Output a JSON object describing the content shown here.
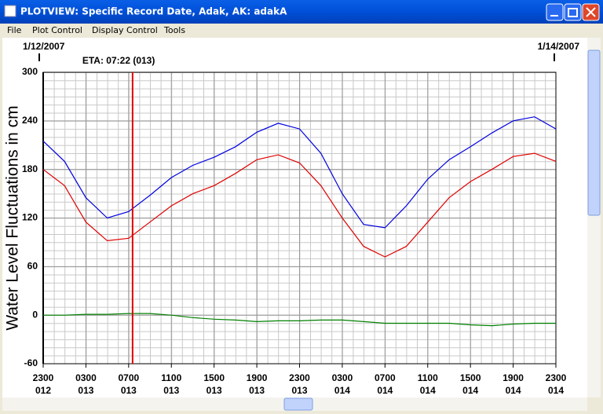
{
  "window": {
    "title": "PLOTVIEW: Specific Record Date, Adak, AK: adakA",
    "menu": [
      "File",
      "Plot Control",
      "Display Control",
      "Tools"
    ]
  },
  "chart_data": {
    "type": "line",
    "ylabel": "Water Level Fluctuations in cm",
    "start_date": "1/12/2007",
    "end_date": "1/14/2007",
    "annotation": {
      "label": "ETA: 07:22 (013)",
      "x": 8.37,
      "color": "#e00000"
    },
    "x": [
      0,
      2,
      4,
      6,
      8,
      10,
      12,
      14,
      16,
      18,
      20,
      22,
      24,
      26,
      28,
      30,
      32,
      34,
      36,
      38,
      40,
      42,
      44,
      46,
      48
    ],
    "xlim": [
      0,
      48
    ],
    "xticks": [
      {
        "value": 0,
        "label": "2300"
      },
      {
        "value": 4,
        "label": "0300"
      },
      {
        "value": 8,
        "label": "0700"
      },
      {
        "value": 12,
        "label": "1100"
      },
      {
        "value": 16,
        "label": "1500"
      },
      {
        "value": 20,
        "label": "1900"
      },
      {
        "value": 24,
        "label": "2300"
      },
      {
        "value": 28,
        "label": "0300"
      },
      {
        "value": 32,
        "label": "0700"
      },
      {
        "value": 36,
        "label": "1100"
      },
      {
        "value": 40,
        "label": "1500"
      },
      {
        "value": 44,
        "label": "1900"
      },
      {
        "value": 48,
        "label": "2300"
      }
    ],
    "xtick_days": [
      "012",
      "013",
      "013",
      "013",
      "013",
      "013",
      "013",
      "014",
      "014",
      "014",
      "014",
      "014",
      "014"
    ],
    "ylim": [
      -60,
      300
    ],
    "yticks": [
      -60,
      0,
      60,
      120,
      180,
      240,
      300
    ],
    "grid": true,
    "series": [
      {
        "color": "#0000e0",
        "values": [
          215,
          190,
          145,
          120,
          128,
          148,
          170,
          185,
          195,
          208,
          226,
          237,
          230,
          200,
          150,
          112,
          108,
          135,
          168,
          192,
          208,
          225,
          240,
          245,
          230
        ]
      },
      {
        "color": "#e00000",
        "values": [
          180,
          160,
          115,
          92,
          95,
          115,
          135,
          150,
          160,
          175,
          192,
          198,
          188,
          160,
          120,
          85,
          72,
          85,
          115,
          145,
          165,
          180,
          196,
          200,
          190
        ]
      },
      {
        "color": "#008000",
        "values": [
          0,
          0,
          1,
          1,
          2,
          2,
          0,
          -3,
          -5,
          -6,
          -8,
          -7,
          -7,
          -6,
          -6,
          -8,
          -10,
          -10,
          -10,
          -10,
          -12,
          -13,
          -11,
          -10,
          -10
        ]
      }
    ]
  }
}
